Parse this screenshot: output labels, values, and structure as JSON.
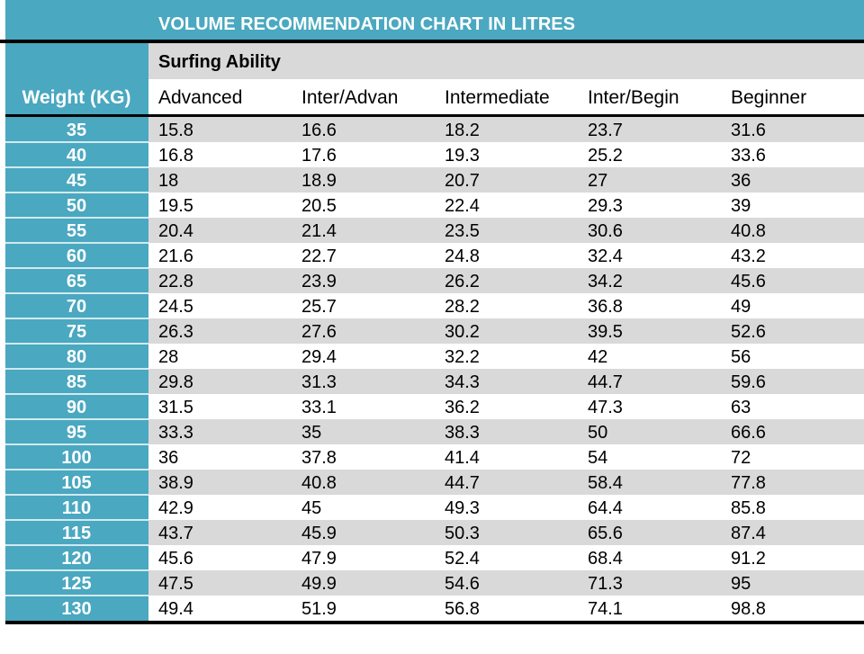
{
  "chart_data": {
    "type": "table",
    "title": "VOLUME RECOMMENDATION CHART IN LITRES",
    "group_label": "Surfing Ability",
    "row_header": "Weight (KG)",
    "columns": [
      "Advanced",
      "Inter/Advan",
      "Intermediate",
      "Inter/Begin",
      "Beginner"
    ],
    "rows": [
      {
        "weight": "35",
        "values": [
          "15.8",
          "16.6",
          "18.2",
          "23.7",
          "31.6"
        ]
      },
      {
        "weight": "40",
        "values": [
          "16.8",
          "17.6",
          "19.3",
          "25.2",
          "33.6"
        ]
      },
      {
        "weight": "45",
        "values": [
          "18",
          "18.9",
          "20.7",
          "27",
          "36"
        ]
      },
      {
        "weight": "50",
        "values": [
          "19.5",
          "20.5",
          "22.4",
          "29.3",
          "39"
        ]
      },
      {
        "weight": "55",
        "values": [
          "20.4",
          "21.4",
          "23.5",
          "30.6",
          "40.8"
        ]
      },
      {
        "weight": "60",
        "values": [
          "21.6",
          "22.7",
          "24.8",
          "32.4",
          "43.2"
        ]
      },
      {
        "weight": "65",
        "values": [
          "22.8",
          "23.9",
          "26.2",
          "34.2",
          "45.6"
        ]
      },
      {
        "weight": "70",
        "values": [
          "24.5",
          "25.7",
          "28.2",
          "36.8",
          "49"
        ]
      },
      {
        "weight": "75",
        "values": [
          "26.3",
          "27.6",
          "30.2",
          "39.5",
          "52.6"
        ]
      },
      {
        "weight": "80",
        "values": [
          "28",
          "29.4",
          "32.2",
          "42",
          "56"
        ]
      },
      {
        "weight": "85",
        "values": [
          "29.8",
          "31.3",
          "34.3",
          "44.7",
          "59.6"
        ]
      },
      {
        "weight": "90",
        "values": [
          "31.5",
          "33.1",
          "36.2",
          "47.3",
          "63"
        ]
      },
      {
        "weight": "95",
        "values": [
          "33.3",
          "35",
          "38.3",
          "50",
          "66.6"
        ]
      },
      {
        "weight": "100",
        "values": [
          "36",
          "37.8",
          "41.4",
          "54",
          "72"
        ]
      },
      {
        "weight": "105",
        "values": [
          "38.9",
          "40.8",
          "44.7",
          "58.4",
          "77.8"
        ]
      },
      {
        "weight": "110",
        "values": [
          "42.9",
          "45",
          "49.3",
          "64.4",
          "85.8"
        ]
      },
      {
        "weight": "115",
        "values": [
          "43.7",
          "45.9",
          "50.3",
          "65.6",
          "87.4"
        ]
      },
      {
        "weight": "120",
        "values": [
          "45.6",
          "47.9",
          "52.4",
          "68.4",
          "91.2"
        ]
      },
      {
        "weight": "125",
        "values": [
          "47.5",
          "49.9",
          "54.6",
          "71.3",
          "95"
        ]
      },
      {
        "weight": "130",
        "values": [
          "49.4",
          "51.9",
          "56.8",
          "74.1",
          "98.8"
        ]
      }
    ]
  },
  "colors": {
    "accent": "#4aa8c0",
    "row_alt": "#d9d9d9",
    "row_plain": "#ffffff",
    "border": "#000000"
  }
}
